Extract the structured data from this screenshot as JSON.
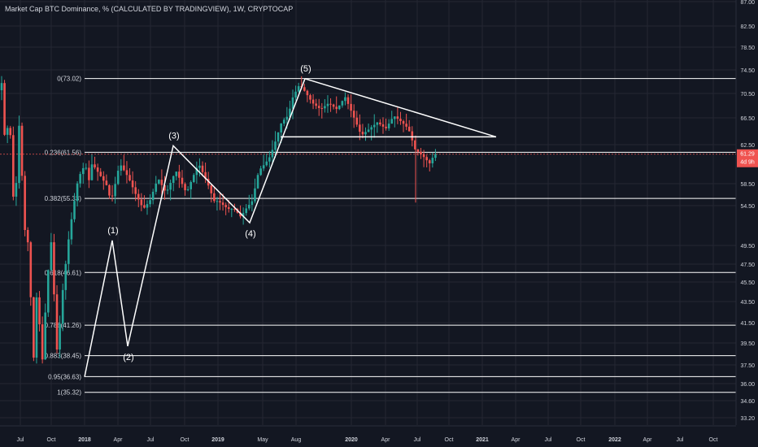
{
  "header": {
    "title": "Market Cap BTC Dominance, % (CALCULATED BY TRADINGVIEW), 1W, CRYPTOCAP"
  },
  "colors": {
    "background": "#131722",
    "grid": "#242733",
    "up": "#26a69a",
    "down": "#ef5350",
    "drawing": "#ffffff",
    "axis_text": "#d1d4dc",
    "price_badge": "#ef5350"
  },
  "price_badge": {
    "value": "61.29",
    "countdown": "4d 9h"
  },
  "chart_data": {
    "type": "candlestick",
    "title": "Market Cap BTC Dominance, % (CALCULATED BY TRADINGVIEW), 1W, CRYPTOCAP",
    "x_tick_labels": [
      "Jul",
      "Oct",
      "2018",
      "Apr",
      "Jul",
      "Oct",
      "2019",
      "May",
      "Aug",
      "2020",
      "Apr",
      "Jul",
      "Oct",
      "2021",
      "Apr",
      "Jul",
      "Oct",
      "2022",
      "Apr",
      "Jul",
      "Oct"
    ],
    "y_tick_labels": [
      "87.00",
      "82.50",
      "78.50",
      "74.50",
      "70.50",
      "66.50",
      "62.50",
      "58.50",
      "54.50",
      "49.50",
      "47.50",
      "45.50",
      "43.50",
      "41.50",
      "39.50",
      "37.50",
      "36.00",
      "34.60",
      "33.20"
    ],
    "ylim": [
      32.0,
      88.0
    ],
    "y_scale": "log",
    "grid": true,
    "last_price": 61.29,
    "fib_levels": [
      {
        "label": "0(73.02)",
        "value": 73.02
      },
      {
        "label": "0.236(61.56)",
        "value": 61.56
      },
      {
        "label": "0.382(55.33)",
        "value": 55.33
      },
      {
        "label": "0.618(46.61)",
        "value": 46.61
      },
      {
        "label": "0.786(41.26)",
        "value": 41.26
      },
      {
        "label": "0.883(38.45)",
        "value": 38.45
      },
      {
        "label": "0.95(36.63)",
        "value": 36.63
      },
      {
        "label": "1(35.32)",
        "value": 35.32
      }
    ],
    "wave_labels": [
      {
        "label": "(1)",
        "value": 50.2
      },
      {
        "label": "(2)",
        "value": 39.3
      },
      {
        "label": "(3)",
        "value": 62.5
      },
      {
        "label": "(4)",
        "value": 52.3
      },
      {
        "label": "(5)",
        "value": 73.0
      }
    ],
    "triangle": {
      "top": 73.0,
      "base": 63.8,
      "apex": 63.8
    }
  }
}
